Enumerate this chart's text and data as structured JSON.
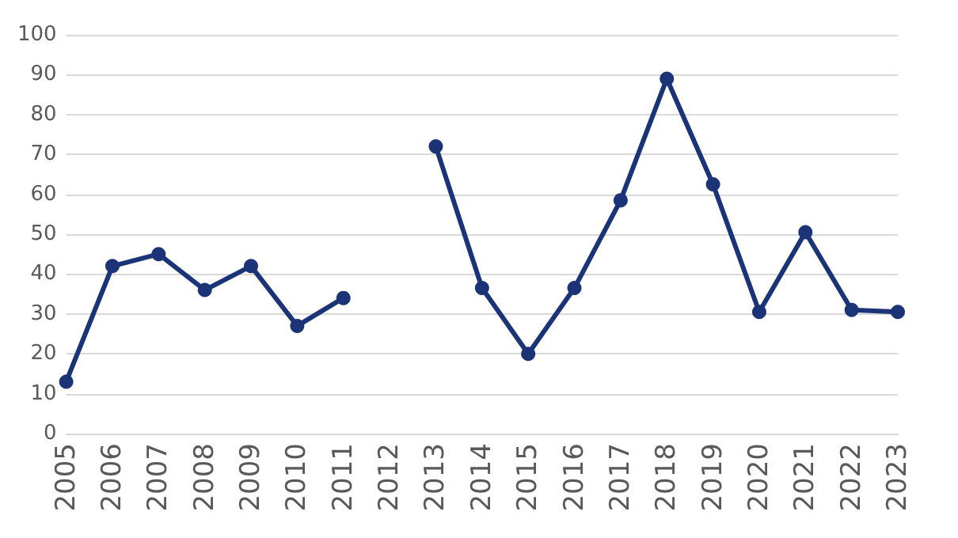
{
  "chart_data": {
    "type": "line",
    "categories": [
      "2005",
      "2006",
      "2007",
      "2008",
      "2009",
      "2010",
      "2011",
      "2012",
      "2013",
      "2014",
      "2015",
      "2016",
      "2017",
      "2018",
      "2019",
      "2020",
      "2021",
      "2022",
      "2023"
    ],
    "series": [
      {
        "color": "#1b3478",
        "values": [
          13,
          42,
          45,
          36,
          42,
          27,
          34,
          null,
          72,
          36.5,
          20,
          36.5,
          58.5,
          89,
          62.5,
          30.5,
          50.5,
          31,
          30.5
        ]
      }
    ],
    "ylim": [
      0,
      100
    ],
    "yticks": [
      0,
      10,
      20,
      30,
      40,
      50,
      60,
      70,
      80,
      90,
      100
    ],
    "grid": "y",
    "marker": "circle",
    "line_style": "solid"
  }
}
